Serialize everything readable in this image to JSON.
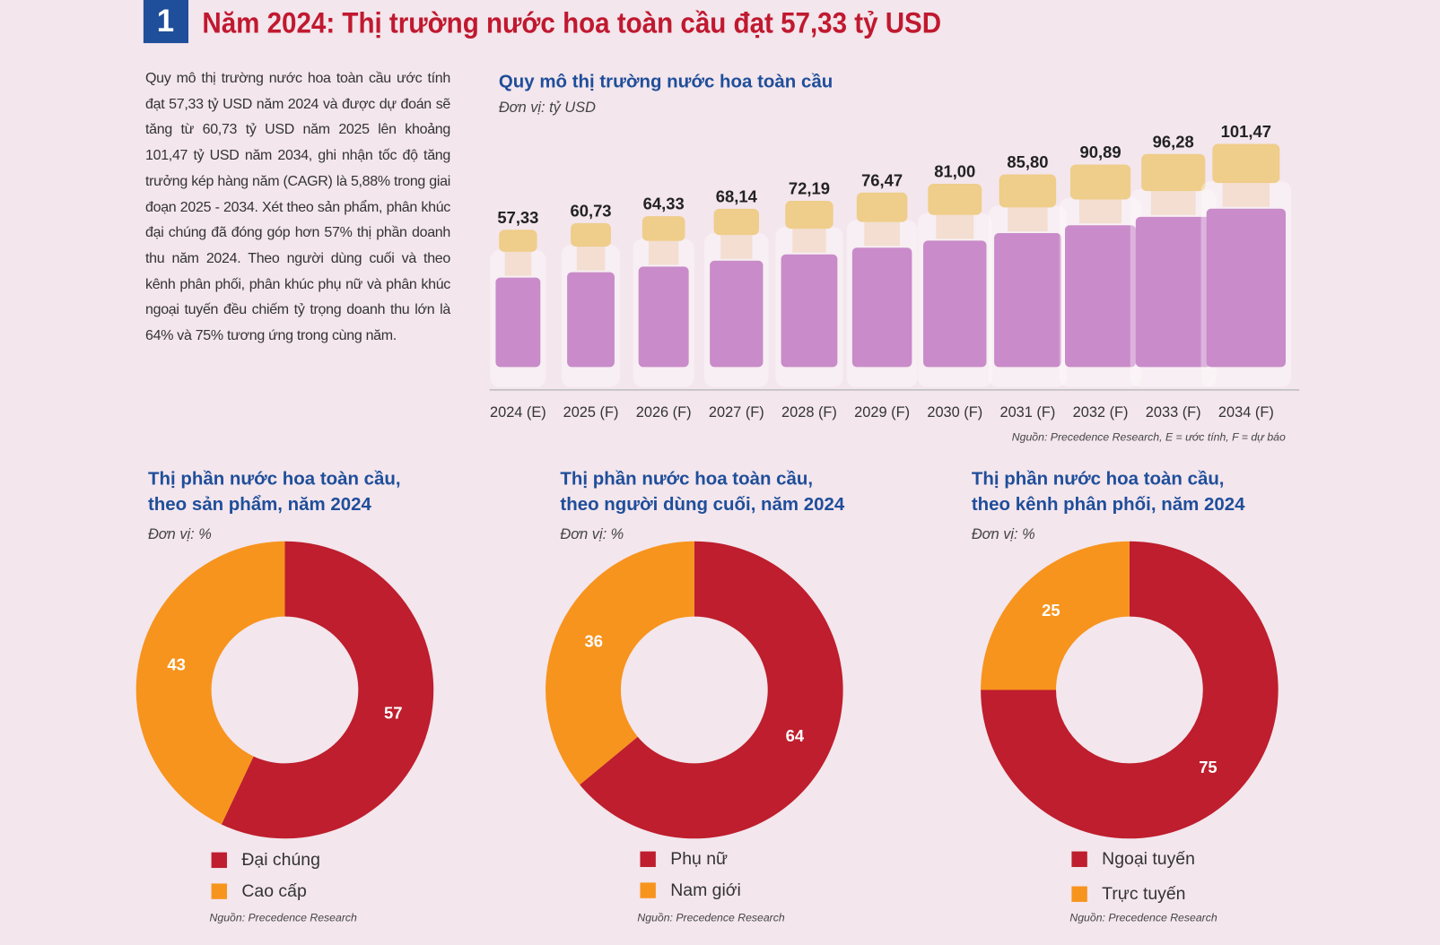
{
  "header": {
    "number": "1",
    "title": "Năm 2024: Thị trường nước hoa toàn cầu đạt 57,33 tỷ USD"
  },
  "intro": "Quy mô thị trường nước hoa toàn cầu ước tính đạt 57,33 tỷ USD năm 2024 và được dự đoán sẽ tăng từ 60,73 tỷ USD năm 2025 lên khoảng 101,47 tỷ USD năm 2034, ghi nhận tốc độ tăng trưởng kép hàng năm (CAGR) là 5,88% trong giai đoạn 2025 - 2034. Xét theo sản phẩm, phân khúc đại chúng đã đóng góp hơn 57% thị phần doanh thu năm 2024. Theo người dùng cuối và theo kênh phân phối, phân khúc phụ nữ và phân khúc ngoại tuyến đều chiếm tỷ trọng doanh thu lớn là 64% và 75% tương ứng trong cùng năm.",
  "chart_data": [
    {
      "type": "bar",
      "title": "Quy mô thị trường nước hoa toàn cầu",
      "subtitle": "Đơn vị: tỷ USD",
      "categories": [
        "2024 (E)",
        "2025 (F)",
        "2026 (F)",
        "2027 (F)",
        "2028 (F)",
        "2029 (F)",
        "2030 (F)",
        "2031 (F)",
        "2032 (F)",
        "2033 (F)",
        "2034 (F)"
      ],
      "values": [
        57.33,
        60.73,
        64.33,
        68.14,
        72.19,
        76.47,
        81.0,
        85.8,
        90.89,
        96.28,
        101.47
      ],
      "value_labels": [
        "57,33",
        "60,73",
        "64,33",
        "68,14",
        "72,19",
        "76,47",
        "81,00",
        "85,80",
        "90,89",
        "96,28",
        "101,47"
      ],
      "color": "#c98bc9",
      "source": "Nguồn: Precedence Research, E = ước tính, F = dự báo"
    },
    {
      "type": "pie",
      "title": [
        "Thị phần nước hoa toàn cầu,",
        "theo sản phẩm, năm 2024"
      ],
      "subtitle": "Đơn vị: %",
      "categories": [
        "Đại chúng",
        "Cao cấp"
      ],
      "values": [
        57,
        43
      ],
      "colors": [
        "#be1e2d",
        "#f7941d"
      ],
      "source": "Nguồn: Precedence Research"
    },
    {
      "type": "pie",
      "title": [
        "Thị phần nước hoa toàn cầu,",
        "theo người dùng cuối, năm 2024"
      ],
      "subtitle": "Đơn vị: %",
      "categories": [
        "Phụ nữ",
        "Nam giới"
      ],
      "values": [
        64,
        36
      ],
      "colors": [
        "#be1e2d",
        "#f7941d"
      ],
      "source": "Nguồn: Precedence Research"
    },
    {
      "type": "pie",
      "title": [
        "Thị phần nước hoa toàn cầu,",
        "theo kênh phân phối, năm 2024"
      ],
      "subtitle": "Đơn vị: %",
      "categories": [
        "Ngoại tuyến",
        "Trực tuyến"
      ],
      "values": [
        75,
        25
      ],
      "colors": [
        "#be1e2d",
        "#f7941d"
      ],
      "source": "Nguồn: Precedence Research"
    }
  ]
}
